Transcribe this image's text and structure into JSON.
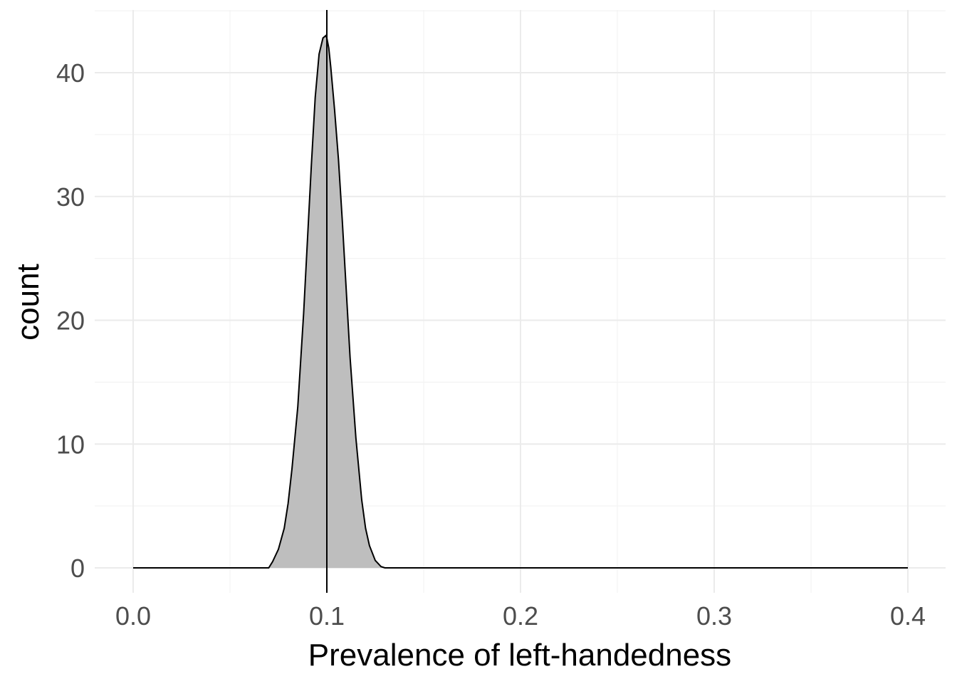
{
  "chart_data": {
    "type": "area",
    "title": "",
    "xlabel": "Prevalence of left-handedness",
    "ylabel": "count",
    "xlim": [
      0,
      0.4
    ],
    "ylim": [
      0,
      45
    ],
    "x_ticks": [
      0.0,
      0.1,
      0.2,
      0.3,
      0.4
    ],
    "x_tick_labels": [
      "0.0",
      "0.1",
      "0.2",
      "0.3",
      "0.4"
    ],
    "y_ticks": [
      0,
      10,
      20,
      30,
      40
    ],
    "y_tick_labels": [
      "0",
      "10",
      "20",
      "30",
      "40"
    ],
    "grid": true,
    "legend": "none",
    "series": [
      {
        "fill": "#bebebe",
        "stroke": "#000000",
        "x": [
          0.0,
          0.07,
          0.072,
          0.075,
          0.078,
          0.08,
          0.082,
          0.085,
          0.088,
          0.09,
          0.092,
          0.094,
          0.096,
          0.098,
          0.0995,
          0.1,
          0.101,
          0.102,
          0.104,
          0.106,
          0.108,
          0.11,
          0.112,
          0.115,
          0.118,
          0.12,
          0.122,
          0.125,
          0.128,
          0.13,
          0.4
        ],
        "y": [
          0,
          0,
          0.5,
          1.5,
          3.2,
          5.2,
          8.0,
          13.0,
          20.5,
          26.5,
          32.5,
          38.0,
          41.5,
          42.8,
          43.0,
          42.8,
          42.0,
          40.5,
          37.0,
          33.0,
          28.0,
          22.5,
          17.0,
          10.5,
          5.5,
          3.2,
          1.8,
          0.6,
          0.1,
          0,
          0
        ]
      }
    ],
    "vline": {
      "x": 0.1,
      "color": "#000000"
    }
  }
}
